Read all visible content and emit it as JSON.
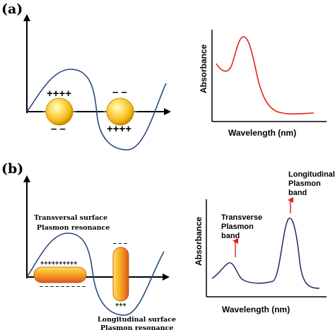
{
  "panels": {
    "a": {
      "label": "(a)",
      "charges_top_left": "++++",
      "charges_bottom_left": "– –",
      "charges_top_right": "– –",
      "charges_bottom_right": "++++",
      "plot": {
        "xlabel": "Wavelength (nm)",
        "ylabel": "Absorbance",
        "line_color": "#e32219"
      }
    },
    "b": {
      "label": "(b)",
      "transverse_note_line1": "Transversal surface",
      "transverse_note_line2": "Plasmon resonance",
      "longitudinal_note_line1": "Longitudinal surface",
      "longitudinal_note_line2": "Plasmon resonance",
      "rod_top_charges": "++++++++++",
      "rod_bottom_charges": "– – – – – – – – –",
      "vrod_top_charges": "– – –",
      "vrod_bottom_charges": "+++",
      "plot": {
        "xlabel": "Wavelength (nm)",
        "ylabel": "Absorbance",
        "line_color": "#243b6b",
        "transverse_line1": "Transverse",
        "transverse_line2": "Plasmon",
        "transverse_line3": "band",
        "longitudinal_line1": "Longitudinal",
        "longitudinal_line2": "Plasmon",
        "longitudinal_line3": "band"
      }
    }
  },
  "colors": {
    "wave": "#2a4a7f",
    "gold_light": "#fff3a0",
    "gold_mid": "#f4c020",
    "gold_dark": "#c98a00",
    "rod_light": "#ffd64a",
    "rod_dark": "#e2601c",
    "arrow": "#e0201b"
  }
}
